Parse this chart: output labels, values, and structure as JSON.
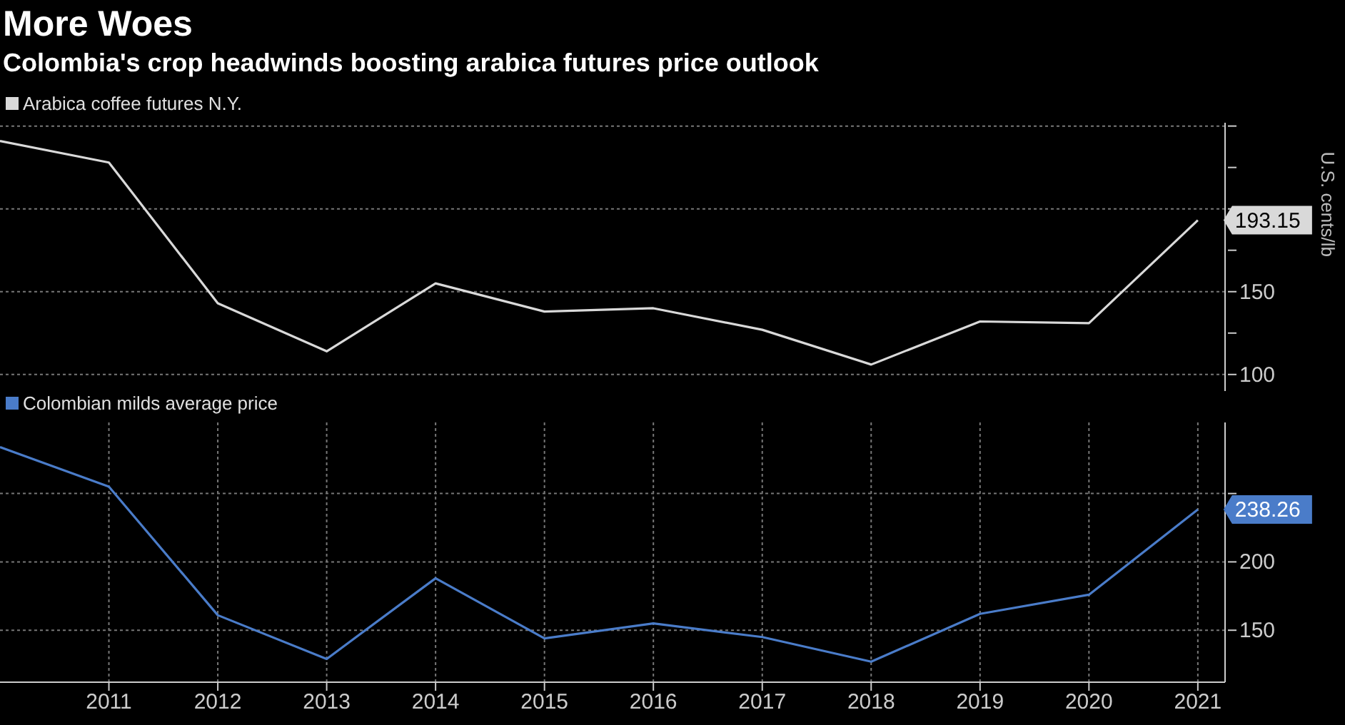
{
  "chart_data": [
    {
      "type": "line",
      "title": "More Woes",
      "subtitle": "Colombia's crop headwinds boosting arabica futures price outlook",
      "ylabel": "U.S. cents/lb",
      "x": [
        2010,
        2011,
        2012,
        2013,
        2014,
        2015,
        2016,
        2017,
        2018,
        2019,
        2020,
        2021
      ],
      "series": [
        {
          "name": "Arabica coffee futures N.Y.",
          "color": "#d9d9d9",
          "values": [
            241,
            228,
            143,
            114,
            155,
            138,
            140,
            127,
            106,
            132,
            131,
            193.15
          ],
          "value_labels": [
            null,
            null,
            null,
            null,
            null,
            null,
            null,
            null,
            null,
            null,
            null,
            "193.15"
          ]
        }
      ],
      "xlim": [
        2010,
        2021.25
      ],
      "xticks": [
        2011,
        2012,
        2013,
        2014,
        2015,
        2016,
        2017,
        2018,
        2019,
        2020,
        2021
      ],
      "ylim": [
        90,
        252
      ],
      "yticks": [
        100,
        {
          "value": 125,
          "label": null
        },
        150,
        {
          "value": 175,
          "label": null
        },
        {
          "value": 200,
          "label": null
        },
        {
          "value": 225,
          "label": null
        },
        {
          "value": 250,
          "label": null
        }
      ],
      "grid": true,
      "legend": "top left",
      "marker": "none",
      "tick_labels": "y"
    },
    {
      "type": "line",
      "x": [
        2010,
        2011,
        2012,
        2013,
        2014,
        2015,
        2016,
        2017,
        2018,
        2019,
        2020,
        2021
      ],
      "series": [
        {
          "name": "Colombian milds average price",
          "color": "#4a7cc9",
          "values": [
            284,
            255,
            161,
            129,
            188,
            144,
            155,
            145,
            127,
            162,
            176,
            238.26
          ],
          "value_labels": [
            null,
            null,
            null,
            null,
            null,
            null,
            null,
            null,
            null,
            null,
            null,
            "238.26"
          ]
        }
      ],
      "xlim": [
        2010,
        2021.25
      ],
      "xticks": [
        2011,
        2012,
        2013,
        2014,
        2015,
        2016,
        2017,
        2018,
        2019,
        2020,
        2021
      ],
      "ylim": [
        112,
        302
      ],
      "yticks": [
        150,
        200,
        {
          "value": 250,
          "label": null
        }
      ],
      "grid": true,
      "legend": "top left",
      "marker": "none"
    }
  ]
}
